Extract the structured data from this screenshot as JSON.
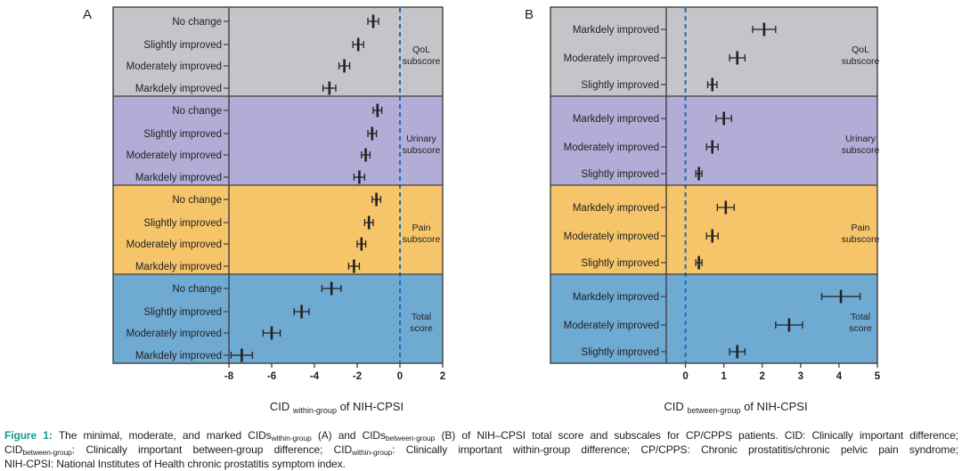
{
  "style": {
    "border_color": "#3f3f3f",
    "background": "#ffffff",
    "marker_color": "#222222",
    "reference_line_color": "#1e6db6",
    "figure_label_color": "#0e9a8c",
    "caption_text_color": "#1d1d1d"
  },
  "chart_data": [
    {
      "type": "scatter",
      "letter": "A",
      "xlabel": {
        "prefix": "CID ",
        "sub": "within-group",
        "suffix": " of NIH-CPSI"
      },
      "xlim": [
        -8,
        2
      ],
      "x_ticks": [
        "-8",
        "-6",
        "-4",
        "-2",
        "0",
        "2"
      ],
      "x_tick_values": [
        -8,
        -6,
        -4,
        -2,
        0,
        2
      ],
      "reference_line_x": 0,
      "grid": false,
      "legend": "none",
      "groups": [
        {
          "name": "QoL subscore",
          "color": "#c5c5c9",
          "rows": [
            {
              "label": "No change",
              "value": -1.25,
              "ci": [
                -1.5,
                -1.0
              ]
            },
            {
              "label": "Slightly improved",
              "value": -1.95,
              "ci": [
                -2.2,
                -1.7
              ]
            },
            {
              "label": "Moderately improved",
              "value": -2.6,
              "ci": [
                -2.85,
                -2.35
              ]
            },
            {
              "label": "Markdely improved",
              "value": -3.3,
              "ci": [
                -3.6,
                -3.0
              ]
            }
          ]
        },
        {
          "name": "Urinary subscore",
          "color": "#b2acd6",
          "rows": [
            {
              "label": "No change",
              "value": -1.05,
              "ci": [
                -1.25,
                -0.85
              ]
            },
            {
              "label": "Slightly improved",
              "value": -1.3,
              "ci": [
                -1.5,
                -1.1
              ]
            },
            {
              "label": "Moderately improved",
              "value": -1.6,
              "ci": [
                -1.8,
                -1.4
              ]
            },
            {
              "label": "Markdely improved",
              "value": -1.9,
              "ci": [
                -2.15,
                -1.65
              ]
            }
          ]
        },
        {
          "name": "Pain subscore",
          "color": "#f6c569",
          "rows": [
            {
              "label": "No change",
              "value": -1.1,
              "ci": [
                -1.3,
                -0.9
              ]
            },
            {
              "label": "Slightly improved",
              "value": -1.45,
              "ci": [
                -1.65,
                -1.25
              ]
            },
            {
              "label": "Moderately improved",
              "value": -1.8,
              "ci": [
                -2.0,
                -1.6
              ]
            },
            {
              "label": "Markdely improved",
              "value": -2.15,
              "ci": [
                -2.4,
                -1.9
              ]
            }
          ]
        },
        {
          "name": "Total score",
          "color": "#6faad3",
          "rows": [
            {
              "label": "No change",
              "value": -3.2,
              "ci": [
                -3.65,
                -2.75
              ]
            },
            {
              "label": "Slightly improved",
              "value": -4.6,
              "ci": [
                -4.95,
                -4.25
              ]
            },
            {
              "label": "Moderately improved",
              "value": -6.0,
              "ci": [
                -6.4,
                -5.6
              ]
            },
            {
              "label": "Markdely improved",
              "value": -7.4,
              "ci": [
                -7.9,
                -6.9
              ]
            }
          ]
        }
      ]
    },
    {
      "type": "scatter",
      "letter": "B",
      "xlabel": {
        "prefix": "CID ",
        "sub": "between-group",
        "suffix": " of NIH-CPSI"
      },
      "xlim": [
        -0.5,
        5
      ],
      "x_ticks": [
        "0",
        "1",
        "2",
        "3",
        "4",
        "5"
      ],
      "x_tick_values": [
        0,
        1,
        2,
        3,
        4,
        5
      ],
      "reference_line_x": 0,
      "grid": false,
      "legend": "none",
      "groups": [
        {
          "name": "QoL subscore",
          "color": "#c5c5c9",
          "rows": [
            {
              "label": "Markdely improved",
              "value": 2.05,
              "ci": [
                1.75,
                2.35
              ]
            },
            {
              "label": "Moderately improved",
              "value": 1.35,
              "ci": [
                1.15,
                1.55
              ]
            },
            {
              "label": "Slightly improved",
              "value": 0.7,
              "ci": [
                0.58,
                0.82
              ]
            }
          ]
        },
        {
          "name": "Urinary subscore",
          "color": "#b2acd6",
          "rows": [
            {
              "label": "Markdely improved",
              "value": 1.0,
              "ci": [
                0.8,
                1.2
              ]
            },
            {
              "label": "Moderately improved",
              "value": 0.7,
              "ci": [
                0.55,
                0.85
              ]
            },
            {
              "label": "Slightly improved",
              "value": 0.35,
              "ci": [
                0.27,
                0.43
              ]
            }
          ]
        },
        {
          "name": "Pain subscore",
          "color": "#f6c569",
          "rows": [
            {
              "label": "Markdely improved",
              "value": 1.05,
              "ci": [
                0.83,
                1.27
              ]
            },
            {
              "label": "Moderately improved",
              "value": 0.7,
              "ci": [
                0.55,
                0.85
              ]
            },
            {
              "label": "Slightly improved",
              "value": 0.35,
              "ci": [
                0.27,
                0.43
              ]
            }
          ]
        },
        {
          "name": "Total score",
          "color": "#6faad3",
          "rows": [
            {
              "label": "Markdely improved",
              "value": 4.05,
              "ci": [
                3.55,
                4.55
              ]
            },
            {
              "label": "Moderately improved",
              "value": 2.7,
              "ci": [
                2.35,
                3.05
              ]
            },
            {
              "label": "Slightly improved",
              "value": 1.35,
              "ci": [
                1.15,
                1.55
              ]
            }
          ]
        }
      ]
    }
  ],
  "caption": {
    "lines": [
      {
        "justify_all": true,
        "parts": [
          {
            "t": "Figure 1: ",
            "s": "fig"
          },
          {
            "t": "The minimal, moderate, and marked CIDs"
          },
          {
            "t": "within-group",
            "s": "sub"
          },
          {
            "t": " (A) and CIDs"
          },
          {
            "t": "between-group",
            "s": "sub"
          },
          {
            "t": " (B) of NIH–CPSI total score and subscales for CP/CPPS patients. CID: Clinically important difference;"
          }
        ]
      },
      {
        "justify_all": true,
        "parts": [
          {
            "t": "CID"
          },
          {
            "t": "between-group",
            "s": "sub"
          },
          {
            "t": ": Clinically important between-group difference; CID"
          },
          {
            "t": "within-group",
            "s": "sub"
          },
          {
            "t": ": Clinically important within-group difference; CP/CPPS: Chronic prostatitis/chronic pelvic pain syndrome;"
          }
        ]
      },
      {
        "justify_all": false,
        "parts": [
          {
            "t": "NIH-CPSI: National Institutes of Health chronic prostatitis symptom index."
          }
        ]
      }
    ]
  }
}
